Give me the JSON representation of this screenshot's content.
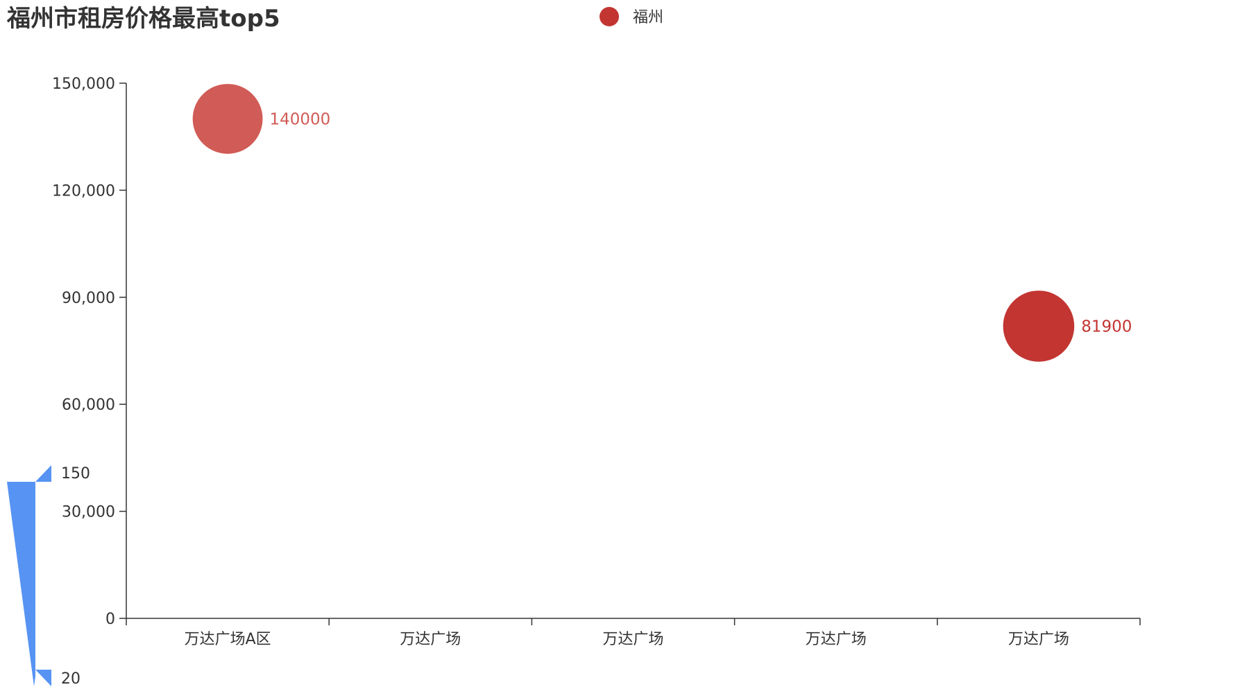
{
  "chart_data": {
    "type": "scatter",
    "title": "福州市租房价格最高top5",
    "legend": {
      "position": "top-center",
      "items": [
        {
          "name": "福州",
          "color": "#c23531"
        }
      ]
    },
    "categories": [
      "万达广场A区",
      "万达广场",
      "万达广场",
      "万达广场",
      "万达广场"
    ],
    "series": [
      {
        "name": "福州",
        "color": "#c23531",
        "points": [
          {
            "category_index": 0,
            "value": 140000,
            "size_value": 112,
            "label": "140000",
            "color": "#d15b56"
          },
          {
            "category_index": 4,
            "value": 81900,
            "size_value": 114,
            "label": "81900",
            "color": "#c23531"
          }
        ]
      }
    ],
    "y_axis": {
      "min": 0,
      "max": 150000,
      "ticks": [
        0,
        30000,
        60000,
        90000,
        120000,
        150000
      ],
      "tick_labels": [
        "0",
        "30,000",
        "60,000",
        "90,000",
        "120,000",
        "150,000"
      ]
    },
    "x_axis": {
      "type": "category"
    },
    "visual_map": {
      "min": 20,
      "max": 150,
      "min_label": "20",
      "max_label": "150",
      "color": "#5793f3"
    },
    "grid": false
  }
}
